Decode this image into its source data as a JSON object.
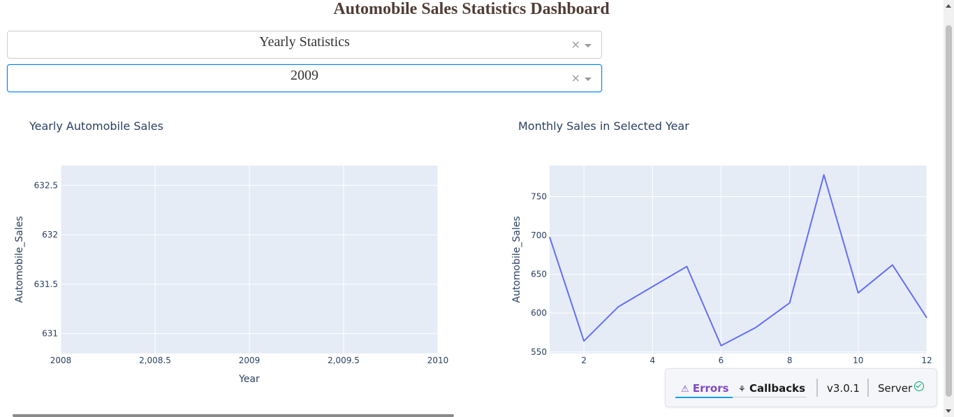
{
  "header": {
    "title": "Automobile Sales Statistics Dashboard"
  },
  "dropdowns": [
    {
      "value": "Yearly Statistics",
      "clear_icon": "close-icon",
      "arrow_icon": "chevron-down-icon"
    },
    {
      "value": "2009",
      "clear_icon": "close-icon",
      "arrow_icon": "chevron-down-icon"
    }
  ],
  "chart_data": [
    {
      "type": "line",
      "title": "Yearly Automobile Sales",
      "xlabel": "Year",
      "ylabel": "Automobile_Sales",
      "xlim": [
        2008,
        2010
      ],
      "ylim": [
        630.8,
        632.7
      ],
      "x_ticks": [
        "2008",
        "2,008.5",
        "2009",
        "2,009.5",
        "2010"
      ],
      "y_ticks": [
        "631",
        "631.5",
        "632",
        "632.5"
      ],
      "series": [],
      "grid": true,
      "plot_bgcolor": "#e5ecf6"
    },
    {
      "type": "line",
      "title": "Monthly Sales in Selected Year",
      "xlabel": "",
      "ylabel": "Automobile_Sales",
      "xlim": [
        1,
        12
      ],
      "ylim": [
        548,
        790
      ],
      "x_ticks": [
        "2",
        "4",
        "6",
        "8",
        "10",
        "12"
      ],
      "y_ticks": [
        "550",
        "600",
        "650",
        "700",
        "750"
      ],
      "x": [
        1,
        2,
        3,
        4,
        5,
        6,
        7,
        8,
        9,
        10,
        11,
        12
      ],
      "series": [
        {
          "values": [
            698,
            564,
            608,
            634,
            660,
            558,
            581,
            613,
            778,
            626,
            662,
            594
          ],
          "color": "#636efa"
        }
      ],
      "grid": true,
      "plot_bgcolor": "#e5ecf6"
    }
  ],
  "devtools": {
    "errors_label": "Errors",
    "errors_icon": "warning-icon",
    "callbacks_label": "Callbacks",
    "callbacks_icon": "callbacks-icon",
    "version": "v3.0.1",
    "server_label": "Server",
    "server_icon": "check-circle-icon"
  }
}
